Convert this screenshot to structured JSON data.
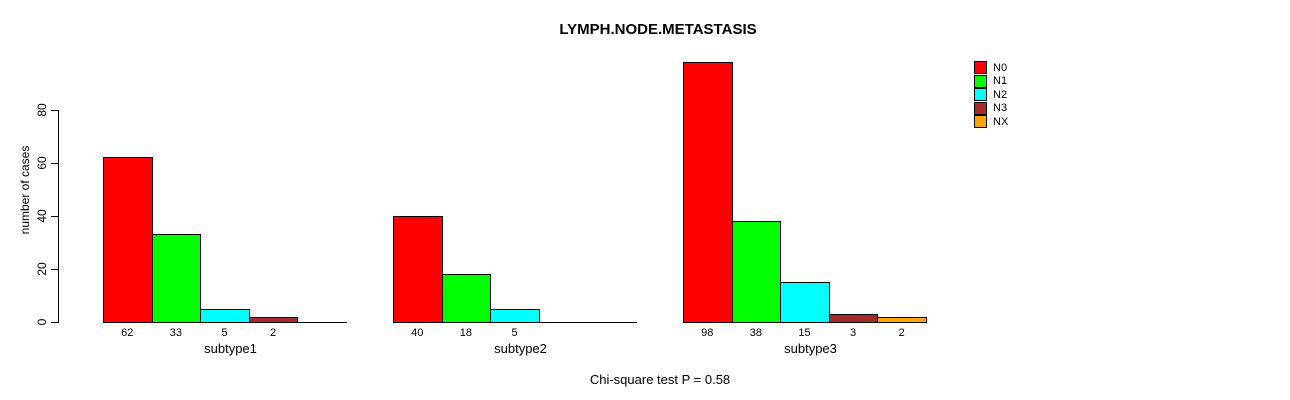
{
  "chart_data": {
    "type": "bar",
    "title": "LYMPH.NODE.METASTASIS",
    "ylabel": "number of cases",
    "xlabel": "",
    "footnote": "Chi-square test P = 0.58",
    "yticks": [
      0,
      20,
      40,
      60,
      80
    ],
    "ylim": [
      0,
      98
    ],
    "grid": false,
    "legend_position": "top-right",
    "categories": [
      "N0",
      "N1",
      "N2",
      "N3",
      "NX"
    ],
    "colors": [
      "#FF0000",
      "#00FF00",
      "#00FFFF",
      "#A52A2A",
      "#FFA500"
    ],
    "groups": [
      {
        "label": "subtype1",
        "values": [
          62,
          33,
          5,
          2,
          0
        ]
      },
      {
        "label": "subtype2",
        "values": [
          40,
          18,
          5,
          0,
          0
        ]
      },
      {
        "label": "subtype3",
        "values": [
          98,
          38,
          15,
          3,
          2
        ]
      }
    ]
  }
}
